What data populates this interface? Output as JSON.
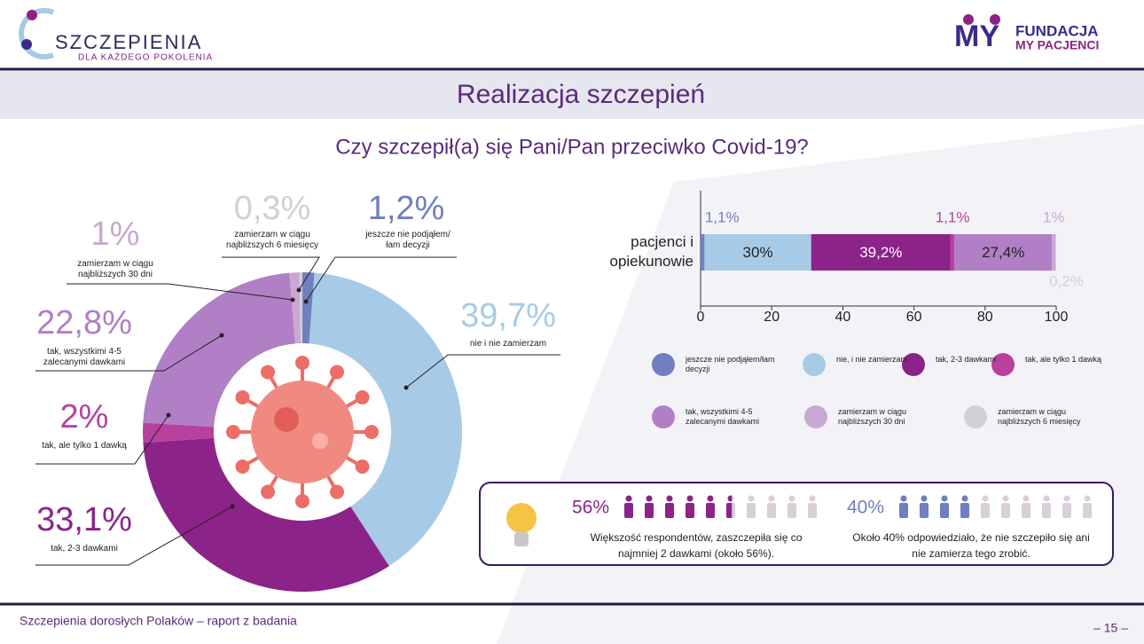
{
  "header": {
    "logo_left": "SZCZEPIENIA",
    "logo_left_sub": "DLA KAŻDEGO POKOLENIA",
    "logo_right_mark": "MY",
    "logo_right_1": "FUNDACJA",
    "logo_right_2": "MY PACJENCI"
  },
  "title": "Realizacja szczepień",
  "question": "Czy szczepił(a) się Pani/Pan przeciwko Covid-19?",
  "chart_data": [
    {
      "type": "donut",
      "categories": [
        "jeszcze nie podjąłem/łam decyzji",
        "nie i nie zamierzam",
        "tak, 2-3 dawkami",
        "tak, ale tylko 1 dawką",
        "tak, wszystkimi 4-5 zalecanymi dawkami",
        "zamierzam w ciągu najbliższych 30 dni",
        "zamierzam w ciągu najbliższych 6 miesięcy"
      ],
      "values": [
        1.2,
        39.7,
        33.1,
        2,
        22.8,
        1,
        0.3
      ],
      "value_labels": [
        "1,2%",
        "39,7%",
        "33,1%",
        "2%",
        "22,8%",
        "1%",
        "0,3%"
      ],
      "colors": [
        "#6f7fbf",
        "#a7cbe6",
        "#8c2389",
        "#b8419d",
        "#b17fc6",
        "#c9a8d4",
        "#d4ced6"
      ]
    },
    {
      "type": "stacked-bar",
      "categories": [
        "pacjenci i opiekunowie"
      ],
      "xlim": [
        0,
        100
      ],
      "xticks": [
        0,
        20,
        40,
        60,
        80,
        100
      ],
      "series": [
        {
          "name": "jeszcze nie podjąłem/łam decyzji",
          "color": "#6f7fbf",
          "values": [
            1.1
          ],
          "value_labels": [
            "1,1%"
          ]
        },
        {
          "name": "nie, i nie zamierzam",
          "color": "#a7cbe6",
          "values": [
            30
          ],
          "value_labels": [
            "30%"
          ]
        },
        {
          "name": "tak, 2-3 dawkami",
          "color": "#8c2389",
          "values": [
            39.2
          ],
          "value_labels": [
            "39,2%"
          ]
        },
        {
          "name": "tak, ale tylko 1 dawką",
          "color": "#b8419d",
          "values": [
            1.1
          ],
          "value_labels": [
            "1,1%"
          ]
        },
        {
          "name": "tak, wszystkimi 4-5 zalecanymi dawkami",
          "color": "#b17fc6",
          "values": [
            27.4
          ],
          "value_labels": [
            "27,4%"
          ]
        },
        {
          "name": "zamierzam w ciągu najbliższych 30 dni",
          "color": "#c9a8d4",
          "values": [
            1
          ],
          "value_labels": [
            "1%"
          ]
        },
        {
          "name": "zamierzam w ciągu najbliższych 6 miesięcy",
          "color": "#d4ced6",
          "values": [
            0.2
          ],
          "value_labels": [
            "0,2%"
          ]
        }
      ]
    }
  ],
  "infobox": [
    {
      "value": 56,
      "value_label": "56%",
      "color": "#8c2389",
      "text": "Większość respondentów, zaszczepiła się co najmniej 2 dawkami (około 56%)."
    },
    {
      "value": 40,
      "value_label": "40%",
      "color": "#6f7fbf",
      "text": "Około 40% odpowiedziało, że nie szczepiło się ani nie zamierza tego zrobić."
    }
  ],
  "footer": {
    "text": "Szczepienia dorosłych Polaków – raport z badania",
    "page": "– 15 –"
  }
}
